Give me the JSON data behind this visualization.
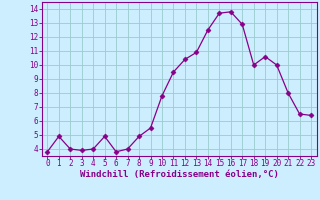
{
  "x": [
    0,
    1,
    2,
    3,
    4,
    5,
    6,
    7,
    8,
    9,
    10,
    11,
    12,
    13,
    14,
    15,
    16,
    17,
    18,
    19,
    20,
    21,
    22,
    23
  ],
  "y": [
    3.8,
    4.9,
    4.0,
    3.9,
    4.0,
    4.9,
    3.8,
    4.0,
    4.9,
    5.5,
    7.8,
    9.5,
    10.4,
    10.9,
    12.5,
    13.7,
    13.8,
    12.9,
    10.0,
    10.6,
    10.0,
    8.0,
    6.5,
    6.4
  ],
  "line_color": "#880088",
  "marker": "D",
  "marker_size": 2.5,
  "bg_color": "#cceeff",
  "grid_color": "#99cccc",
  "xlabel": "Windchill (Refroidissement éolien,°C)",
  "tick_color": "#880088",
  "ylim": [
    3.5,
    14.5
  ],
  "xlim": [
    -0.5,
    23.5
  ],
  "yticks": [
    4,
    5,
    6,
    7,
    8,
    9,
    10,
    11,
    12,
    13,
    14
  ],
  "xticks": [
    0,
    1,
    2,
    3,
    4,
    5,
    6,
    7,
    8,
    9,
    10,
    11,
    12,
    13,
    14,
    15,
    16,
    17,
    18,
    19,
    20,
    21,
    22,
    23
  ],
  "tick_fontsize": 5.5,
  "xlabel_fontsize": 6.5
}
